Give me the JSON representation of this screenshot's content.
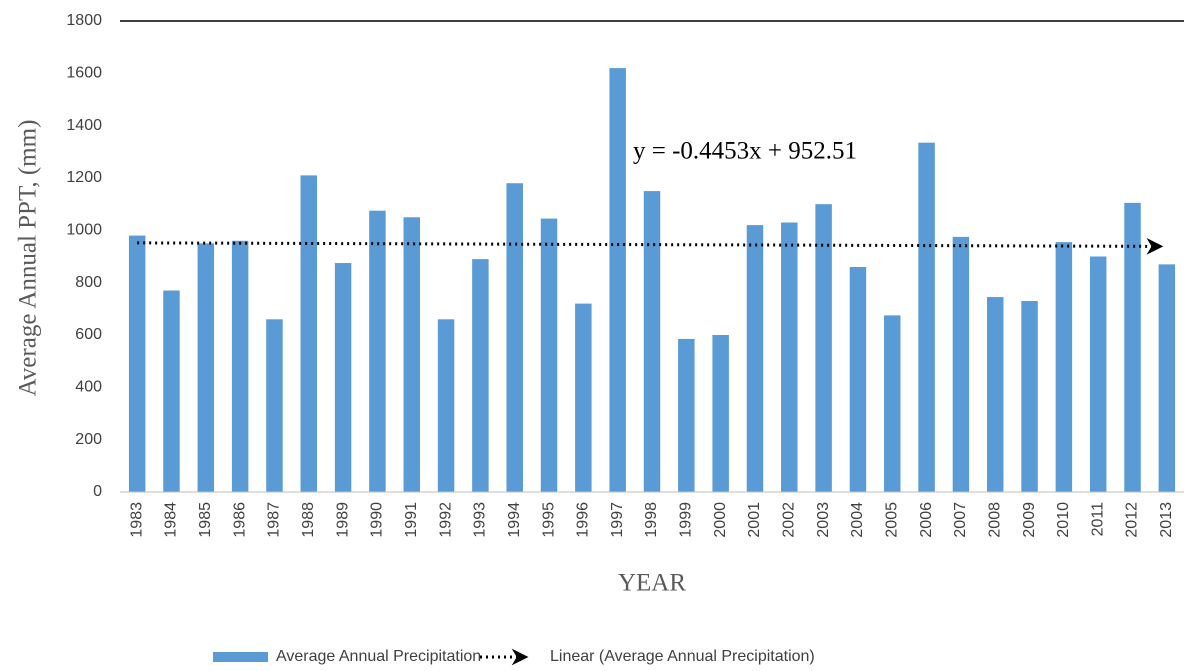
{
  "chart_data": {
    "type": "bar",
    "y_label": "Average Annual PPT, (mm)",
    "x_label": "YEAR",
    "categories": [
      "1983",
      "1984",
      "1985",
      "1986",
      "1987",
      "1988",
      "1989",
      "1990",
      "1991",
      "1992",
      "1993",
      "1994",
      "1995",
      "1996",
      "1997",
      "1998",
      "1999",
      "2000",
      "2001",
      "2002",
      "2003",
      "2004",
      "2005",
      "2006",
      "2007",
      "2008",
      "2009",
      "2010",
      "2011",
      "2012",
      "2013"
    ],
    "series": [
      {
        "name": "Average Annual Precipitation",
        "color": "#5b9bd5",
        "values": [
          980,
          770,
          950,
          960,
          660,
          1210,
          875,
          1075,
          1050,
          660,
          890,
          1180,
          1045,
          720,
          1620,
          1150,
          585,
          600,
          1020,
          1030,
          1100,
          860,
          675,
          1335,
          975,
          745,
          730,
          955,
          900,
          1105,
          870
        ]
      }
    ],
    "trendline": {
      "name": "Linear (Average Annual Precipitation)",
      "label": "y = -0.4453x + 952.51",
      "slope": -0.4453,
      "intercept": 952.51,
      "color": "#000000"
    },
    "ylim": [
      0,
      1800
    ],
    "yticks": [
      0,
      200,
      400,
      600,
      800,
      1000,
      1200,
      1400,
      1600,
      1800
    ],
    "grid": false,
    "legend": "bottom"
  }
}
